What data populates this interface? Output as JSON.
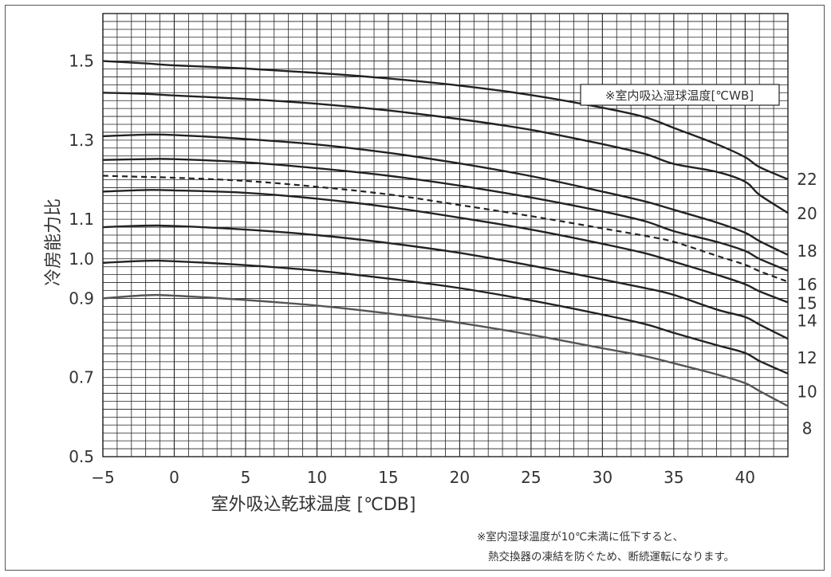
{
  "chart_data": {
    "type": "line",
    "xlabel": "室外吸込乾球温度 [℃DB]",
    "ylabel": "冷房能力比",
    "xlim": [
      -5,
      43
    ],
    "ylim": [
      0.5,
      1.62
    ],
    "x_ticks": [
      {
        "value": -5,
        "label": "−5"
      },
      {
        "value": 0,
        "label": "0"
      },
      {
        "value": 5,
        "label": "5"
      },
      {
        "value": 10,
        "label": "10"
      },
      {
        "value": 15,
        "label": "15"
      },
      {
        "value": 20,
        "label": "20"
      },
      {
        "value": 25,
        "label": "25"
      },
      {
        "value": 30,
        "label": "30"
      },
      {
        "value": 35,
        "label": "35"
      },
      {
        "value": 40,
        "label": "40"
      }
    ],
    "y_ticks": [
      {
        "value": 0.5,
        "label": "0.5"
      },
      {
        "value": 0.7,
        "label": "0.7"
      },
      {
        "value": 0.9,
        "label": "0.9"
      },
      {
        "value": 1.0,
        "label": "1.0"
      },
      {
        "value": 1.1,
        "label": "1.1"
      },
      {
        "value": 1.3,
        "label": "1.3"
      },
      {
        "value": 1.5,
        "label": "1.5"
      }
    ],
    "grid": true,
    "legend_title": "※室内吸込湿球温度[℃WB]",
    "legend_position": "top-right",
    "x": [
      -5,
      -2,
      0,
      5,
      10,
      15,
      20,
      25,
      30,
      33,
      35,
      38,
      40,
      41,
      43
    ],
    "series": [
      {
        "name": "22",
        "style": "solid",
        "color": "#222222",
        "values": [
          1.5,
          1.494,
          1.489,
          1.481,
          1.47,
          1.456,
          1.438,
          1.414,
          1.382,
          1.358,
          1.331,
          1.29,
          1.257,
          1.232,
          1.201
        ]
      },
      {
        "name": "20",
        "style": "solid",
        "color": "#222222",
        "values": [
          1.42,
          1.417,
          1.413,
          1.404,
          1.392,
          1.375,
          1.353,
          1.326,
          1.29,
          1.265,
          1.24,
          1.22,
          1.195,
          1.162,
          1.116
        ]
      },
      {
        "name": "18",
        "style": "solid",
        "color": "#222222",
        "values": [
          1.31,
          1.314,
          1.313,
          1.303,
          1.289,
          1.268,
          1.241,
          1.209,
          1.17,
          1.145,
          1.124,
          1.092,
          1.066,
          1.045,
          1.01
        ]
      },
      {
        "name": "16",
        "style": "solid",
        "color": "#222222",
        "values": [
          1.25,
          1.252,
          1.252,
          1.244,
          1.229,
          1.21,
          1.185,
          1.155,
          1.12,
          1.095,
          1.07,
          1.043,
          1.02,
          1.0,
          0.97
        ]
      },
      {
        "name": "15",
        "style": "dashed",
        "color": "#222222",
        "values": [
          1.21,
          1.207,
          1.205,
          1.197,
          1.182,
          1.163,
          1.136,
          1.108,
          1.077,
          1.058,
          1.043,
          1.008,
          0.985,
          0.969,
          0.942
        ]
      },
      {
        "name": "14",
        "style": "solid",
        "color": "#222222",
        "values": [
          1.17,
          1.174,
          1.173,
          1.167,
          1.152,
          1.131,
          1.104,
          1.074,
          1.038,
          1.014,
          0.993,
          0.96,
          0.936,
          0.918,
          0.89
        ]
      },
      {
        "name": "12",
        "style": "solid",
        "color": "#222222",
        "values": [
          1.08,
          1.084,
          1.083,
          1.074,
          1.06,
          1.04,
          1.015,
          0.983,
          0.948,
          0.926,
          0.909,
          0.872,
          0.853,
          0.834,
          0.798
        ]
      },
      {
        "name": "10",
        "style": "solid",
        "color": "#222222",
        "values": [
          0.99,
          0.995,
          0.994,
          0.984,
          0.97,
          0.95,
          0.926,
          0.895,
          0.859,
          0.835,
          0.813,
          0.782,
          0.762,
          0.742,
          0.71
        ]
      },
      {
        "name": "8",
        "style": "solid",
        "color": "#555555",
        "values": [
          0.9,
          0.908,
          0.907,
          0.896,
          0.882,
          0.862,
          0.838,
          0.808,
          0.774,
          0.754,
          0.736,
          0.708,
          0.686,
          0.666,
          0.628
        ]
      }
    ],
    "label_order": [
      {
        "name": "22",
        "label_y": 1.201
      },
      {
        "name": "20",
        "label_y": 1.114
      },
      {
        "name": "18",
        "label_y": 1.02
      },
      {
        "name": "16",
        "label_y": 0.935
      },
      {
        "name": "15",
        "label_y": 0.888
      },
      {
        "name": "14",
        "label_y": 0.843
      },
      {
        "name": "12",
        "label_y": 0.75
      },
      {
        "name": "10",
        "label_y": 0.664
      },
      {
        "name": "8",
        "label_y": 0.572
      }
    ]
  },
  "note": {
    "line1": "※室内湿球温度が10℃未満に低下すると、",
    "line2": "熱交換器の凍結を防ぐため、断続運転になります。"
  },
  "colors": {
    "grid": "#222222",
    "frame": "#555555",
    "text": "#333333"
  }
}
